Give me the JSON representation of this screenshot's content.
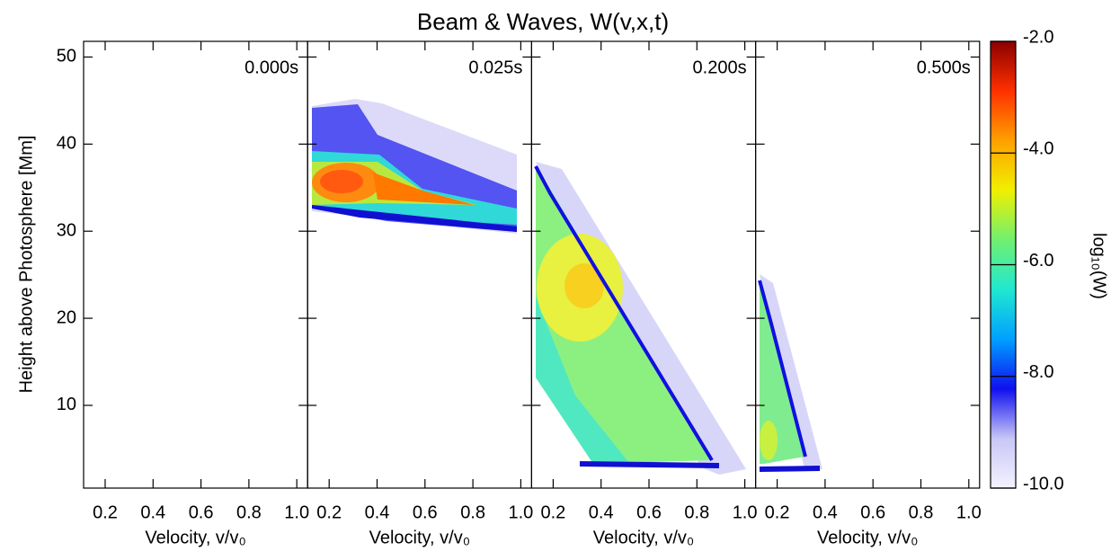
{
  "chart_data": {
    "type": "heatmap",
    "title": "Beam & Waves, W(v,x,t)",
    "x_label": "Velocity, v/v₀",
    "y_label": "Height above Photosphere [Mm]",
    "panels": [
      "0.000s",
      "0.025s",
      "0.200s",
      "0.500s"
    ],
    "xlim": [
      0.11,
      1.045
    ],
    "xticks": [
      0.2,
      0.4,
      0.6,
      0.8,
      {
        "value": 1,
        "label": "1.0"
      }
    ],
    "ylim": [
      0.5,
      51.8
    ],
    "yticks": [
      10,
      20,
      30,
      40,
      50
    ],
    "colorbar": {
      "label": "log₁₀(W)",
      "zlim": [
        -10,
        -2
      ],
      "ticks": [
        {
          "value": -2,
          "label": "-2.0"
        },
        {
          "value": -4,
          "label": "-4.0"
        },
        {
          "value": -6,
          "label": "-6.0"
        },
        {
          "value": -8,
          "label": "-8.0"
        },
        {
          "value": -10,
          "label": "-10.0"
        }
      ],
      "colormap": [
        "#f4f2ff",
        "#c8c6f6",
        "#1010f0",
        "#00a0ff",
        "#20e8d0",
        "#70f070",
        "#f0f000",
        "#ffa000",
        "#ff3000",
        "#8a0000"
      ]
    }
  }
}
